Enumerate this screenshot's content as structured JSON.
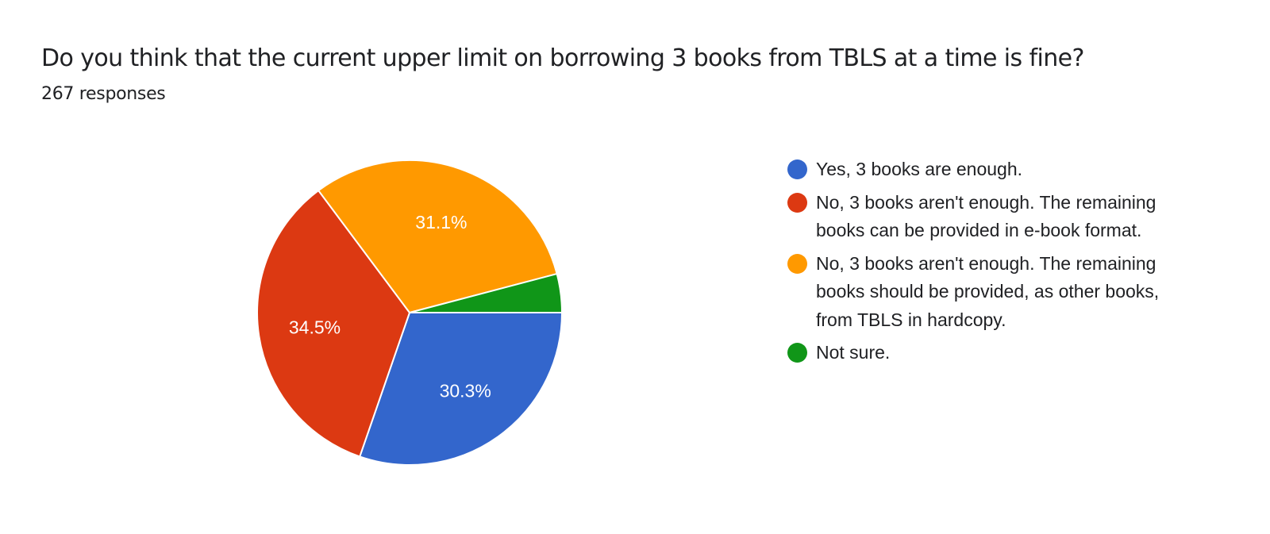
{
  "header": {
    "title": "Do you think that the current upper limit on borrowing 3 books from TBLS at a time is fine?",
    "responses": "267 responses"
  },
  "chart_data": {
    "type": "pie",
    "title": "Do you think that the current upper limit on borrowing 3 books from TBLS at a time is fine?",
    "subtitle": "267 responses",
    "legend_position": "right",
    "series": [
      {
        "name": "Yes, 3 books are enough.",
        "value": 30.3,
        "label": "30.3%",
        "color": "#3366cc"
      },
      {
        "name": "No, 3 books aren't enough. The remaining books can be provided in e-book format.",
        "value": 34.5,
        "label": "34.5%",
        "color": "#dc3912"
      },
      {
        "name": "No, 3 books aren't enough. The remaining books should be provided, as other books, from TBLS in hardcopy.",
        "value": 31.1,
        "label": "31.1%",
        "color": "#ff9900"
      },
      {
        "name": "Not sure.",
        "value": 4.1,
        "label": "",
        "color": "#109618"
      }
    ]
  }
}
